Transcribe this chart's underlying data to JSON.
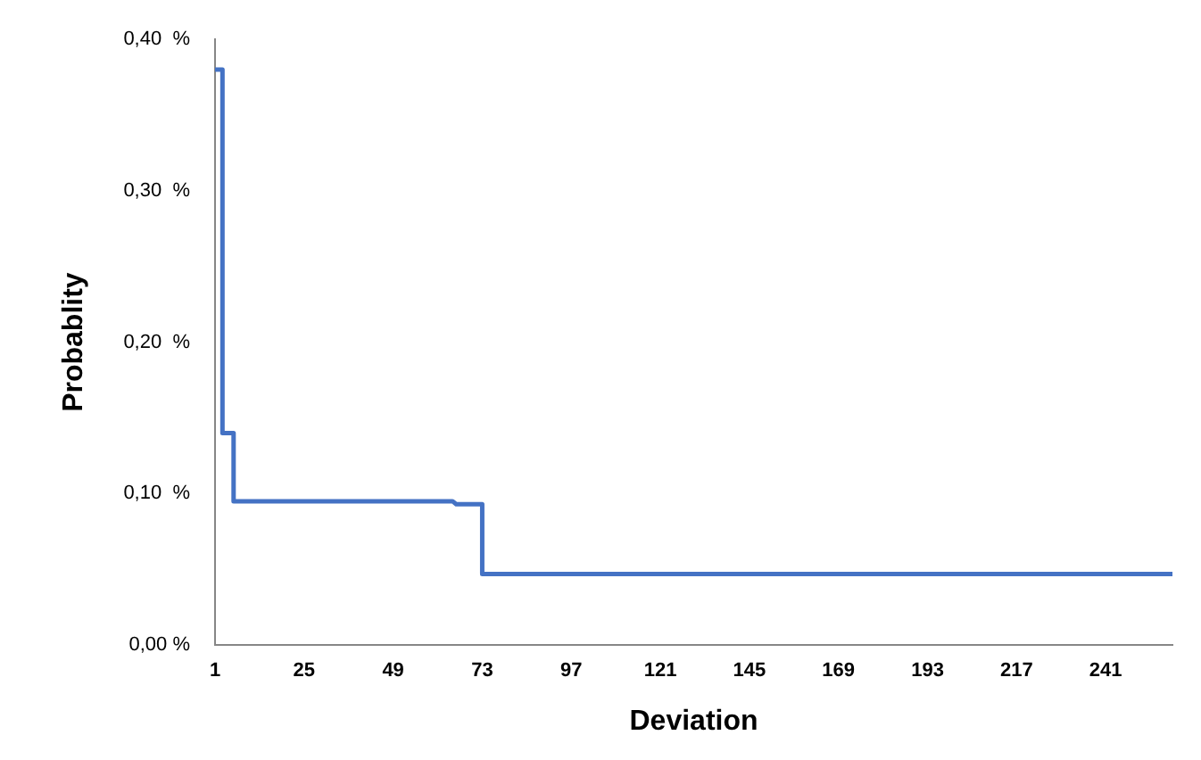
{
  "chart_data": {
    "type": "line",
    "xlabel": "Deviation",
    "ylabel": "Probablity",
    "series": [
      {
        "color": "#4472c4",
        "x": [
          1,
          3,
          3,
          6,
          6,
          65,
          66,
          73,
          73,
          259
        ],
        "values": [
          0.38,
          0.38,
          0.14,
          0.14,
          0.095,
          0.095,
          0.093,
          0.093,
          0.047,
          0.047
        ]
      }
    ],
    "xlim": [
      1,
      259
    ],
    "xticks": [
      1,
      25,
      49,
      73,
      97,
      121,
      145,
      169,
      193,
      217,
      241
    ],
    "ylim": [
      0,
      0.4
    ],
    "yticks": [
      {
        "value": 0,
        "label": "0,00 %"
      },
      {
        "value": 0.1,
        "label": "0,10  %"
      },
      {
        "value": 0.2,
        "label": "0,20  %"
      },
      {
        "value": 0.3,
        "label": "0,30  %"
      },
      {
        "value": 0.4,
        "label": "0,40  %"
      }
    ],
    "grid": false,
    "legend": false,
    "marker": "none",
    "line_style": "solid"
  }
}
